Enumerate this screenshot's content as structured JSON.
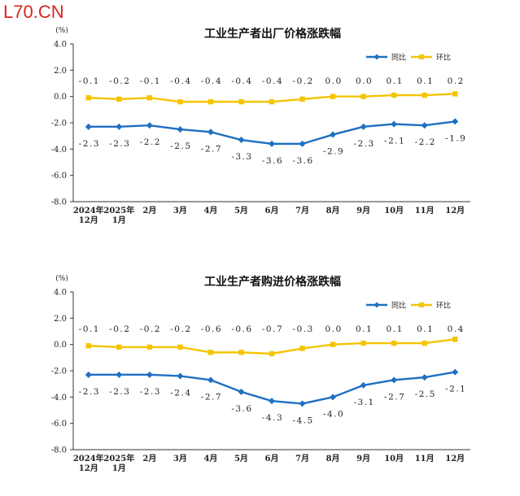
{
  "logo": "L70.CN",
  "chart_data": [
    {
      "type": "line",
      "title": "工业生产者出厂价格涨跌幅",
      "unit_label": "(%)",
      "ylim": [
        -8.0,
        4.0
      ],
      "yticks": [
        "4.0",
        "2.0",
        "0.0",
        "-2.0",
        "-4.0",
        "-6.0",
        "-8.0"
      ],
      "categories": [
        [
          "2024年",
          "12月"
        ],
        [
          "2025年",
          "1月"
        ],
        [
          "2月"
        ],
        [
          "3月"
        ],
        [
          "4月"
        ],
        [
          "5月"
        ],
        [
          "6月"
        ],
        [
          "7月"
        ],
        [
          "8月"
        ],
        [
          "9月"
        ],
        [
          "10月"
        ],
        [
          "11月"
        ],
        [
          "12月"
        ]
      ],
      "legend": "top-right",
      "series": [
        {
          "name": "同比",
          "color": "#1f6fc2",
          "marker": "diamond",
          "label_pos": "below",
          "values": [
            -2.3,
            -2.3,
            -2.2,
            -2.5,
            -2.7,
            -3.3,
            -3.6,
            -3.6,
            -2.9,
            -2.3,
            -2.1,
            -2.2,
            -1.9
          ],
          "labels": [
            "-2.3",
            "-2.3",
            "-2.2",
            "-2.5",
            "-2.7",
            "-3.3",
            "-3.6",
            "-3.6",
            "-2.9",
            "-2.3",
            "-2.1",
            "-2.2",
            "-1.9"
          ]
        },
        {
          "name": "环比",
          "color": "#f5c400",
          "marker": "square",
          "label_pos": "above",
          "values": [
            -0.1,
            -0.2,
            -0.1,
            -0.4,
            -0.4,
            -0.4,
            -0.4,
            -0.2,
            0.0,
            0.0,
            0.1,
            0.1,
            0.2
          ],
          "labels": [
            "-0.1",
            "-0.2",
            "-0.1",
            "-0.4",
            "-0.4",
            "-0.4",
            "-0.4",
            "-0.2",
            "0.0",
            "0.0",
            "0.1",
            "0.1",
            "0.2"
          ]
        }
      ]
    },
    {
      "type": "line",
      "title": "工业生产者购进价格涨跌幅",
      "unit_label": "(%)",
      "ylim": [
        -8.0,
        4.0
      ],
      "yticks": [
        "4.0",
        "2.0",
        "0.0",
        "-2.0",
        "-4.0",
        "-6.0",
        "-8.0"
      ],
      "categories": [
        [
          "2024年",
          "12月"
        ],
        [
          "2025年",
          "1月"
        ],
        [
          "2月"
        ],
        [
          "3月"
        ],
        [
          "4月"
        ],
        [
          "5月"
        ],
        [
          "6月"
        ],
        [
          "7月"
        ],
        [
          "8月"
        ],
        [
          "9月"
        ],
        [
          "10月"
        ],
        [
          "11月"
        ],
        [
          "12月"
        ]
      ],
      "legend": "top-right",
      "series": [
        {
          "name": "同比",
          "color": "#1f6fc2",
          "marker": "diamond",
          "label_pos": "below",
          "values": [
            -2.3,
            -2.3,
            -2.3,
            -2.4,
            -2.7,
            -3.6,
            -4.3,
            -4.5,
            -4.0,
            -3.1,
            -2.7,
            -2.5,
            -2.1
          ],
          "labels": [
            "-2.3",
            "-2.3",
            "-2.3",
            "-2.4",
            "-2.7",
            "-3.6",
            "-4.3",
            "-4.5",
            "-4.0",
            "-3.1",
            "-2.7",
            "-2.5",
            "-2.1"
          ]
        },
        {
          "name": "环比",
          "color": "#f5c400",
          "marker": "square",
          "label_pos": "above",
          "values": [
            -0.1,
            -0.2,
            -0.2,
            -0.2,
            -0.6,
            -0.6,
            -0.7,
            -0.3,
            0.0,
            0.1,
            0.1,
            0.1,
            0.4
          ],
          "labels": [
            "-0.1",
            "-0.2",
            "-0.2",
            "-0.2",
            "-0.6",
            "-0.6",
            "-0.7",
            "-0.3",
            "0.0",
            "0.1",
            "0.1",
            "0.1",
            "0.4"
          ]
        }
      ]
    }
  ]
}
